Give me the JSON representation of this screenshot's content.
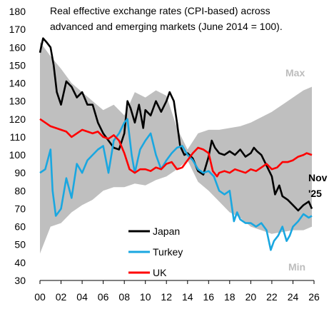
{
  "chart_data": {
    "type": "line",
    "title_lines": [
      "Real effective exchange rates (CPI-based) across",
      "advanced and emerging markets (June 2014 = 100)."
    ],
    "xlabel": "",
    "ylabel": "",
    "xlim": [
      2000,
      2026
    ],
    "ylim": [
      30,
      180
    ],
    "x_tick_labels": [
      "00",
      "02",
      "04",
      "06",
      "08",
      "10",
      "12",
      "14",
      "16",
      "18",
      "20",
      "22",
      "24",
      "26"
    ],
    "x_tick_values": [
      2000,
      2002,
      2004,
      2006,
      2008,
      2010,
      2012,
      2014,
      2016,
      2018,
      2020,
      2022,
      2024,
      2026
    ],
    "y_ticks": [
      30,
      40,
      50,
      60,
      70,
      80,
      90,
      100,
      110,
      120,
      130,
      140,
      150,
      160,
      170,
      180
    ],
    "grid": false,
    "band": {
      "labels": {
        "max": "Max",
        "min": "Min"
      },
      "color": "#bfbfbf",
      "x": [
        2000,
        2001,
        2002,
        2003,
        2004,
        2005,
        2006,
        2007,
        2008,
        2009,
        2010,
        2011,
        2012,
        2013,
        2014,
        2015,
        2016,
        2017,
        2018,
        2019,
        2020,
        2021,
        2022,
        2023,
        2024,
        2025,
        2025.8
      ],
      "max": [
        163,
        155,
        148,
        140,
        135,
        130,
        125,
        128,
        122,
        135,
        132,
        136,
        133,
        115,
        103,
        112,
        114,
        114,
        115,
        116,
        118,
        121,
        124,
        128,
        132,
        136,
        138
      ],
      "min": [
        45,
        60,
        62,
        68,
        72,
        75,
        80,
        82,
        82,
        84,
        83,
        86,
        88,
        92,
        97,
        85,
        80,
        74,
        68,
        65,
        60,
        58,
        56,
        57,
        58,
        58,
        60
      ]
    },
    "series": [
      {
        "name": "Japan",
        "color": "#000000",
        "x": [
          2000,
          2000.3,
          2000.6,
          2001,
          2001.3,
          2001.6,
          2002,
          2002.5,
          2003,
          2003.5,
          2004,
          2004.5,
          2005,
          2005.5,
          2006,
          2006.5,
          2007,
          2007.5,
          2008,
          2008.3,
          2008.6,
          2009,
          2009.4,
          2009.8,
          2010,
          2010.5,
          2011,
          2011.5,
          2012,
          2012.3,
          2012.7,
          2013,
          2013.3,
          2013.7,
          2014,
          2014.5,
          2015,
          2015.5,
          2016,
          2016.3,
          2016.6,
          2017,
          2017.5,
          2018,
          2018.5,
          2019,
          2019.5,
          2020,
          2020.3,
          2020.6,
          2021,
          2021.5,
          2022,
          2022.3,
          2022.7,
          2023,
          2023.5,
          2024,
          2024.5,
          2025,
          2025.5,
          2025.8
        ],
        "y": [
          157,
          165,
          163,
          160,
          150,
          135,
          128,
          141,
          138,
          132,
          135,
          128,
          128,
          118,
          112,
          108,
          104,
          103,
          112,
          130,
          126,
          118,
          128,
          115,
          125,
          122,
          130,
          124,
          130,
          135,
          130,
          118,
          105,
          100,
          101,
          98,
          91,
          89,
          99,
          108,
          104,
          101,
          100,
          102,
          100,
          103,
          99,
          101,
          104,
          102,
          100,
          94,
          88,
          78,
          83,
          77,
          75,
          72,
          69,
          72,
          74,
          70
        ]
      },
      {
        "name": "Turkey",
        "color": "#1aa7e0",
        "x": [
          2000,
          2000.5,
          2001,
          2001.2,
          2001.5,
          2002,
          2002.5,
          2003,
          2003.5,
          2004,
          2004.5,
          2005,
          2005.5,
          2006,
          2006.5,
          2007,
          2007.5,
          2008,
          2008.3,
          2008.7,
          2009,
          2009.5,
          2010,
          2010.5,
          2011,
          2011.5,
          2012,
          2012.5,
          2013,
          2013.5,
          2014,
          2014.5,
          2015,
          2015.5,
          2016,
          2016.5,
          2017,
          2017.5,
          2018,
          2018.4,
          2018.7,
          2019,
          2019.5,
          2020,
          2020.5,
          2021,
          2021.5,
          2021.9,
          2022.2,
          2022.6,
          2023,
          2023.4,
          2023.7,
          2024,
          2024.5,
          2025,
          2025.5,
          2025.8
        ],
        "y": [
          90,
          92,
          103,
          80,
          66,
          70,
          87,
          76,
          95,
          90,
          97,
          100,
          103,
          105,
          90,
          108,
          112,
          118,
          120,
          100,
          90,
          103,
          108,
          112,
          100,
          92,
          97,
          101,
          104,
          105,
          100,
          97,
          92,
          90,
          91,
          88,
          80,
          78,
          80,
          63,
          68,
          64,
          62,
          62,
          60,
          62,
          58,
          47,
          52,
          55,
          60,
          52,
          55,
          60,
          63,
          67,
          65,
          66
        ]
      },
      {
        "name": "UK",
        "color": "#ff0000",
        "x": [
          2000,
          2000.5,
          2001,
          2001.5,
          2002,
          2002.5,
          2003,
          2003.5,
          2004,
          2004.5,
          2005,
          2005.5,
          2006,
          2006.5,
          2007,
          2007.5,
          2008,
          2008.5,
          2009,
          2009.5,
          2010,
          2010.5,
          2011,
          2011.5,
          2012,
          2012.5,
          2013,
          2013.5,
          2014,
          2014.5,
          2015,
          2015.5,
          2016,
          2016.4,
          2016.8,
          2017,
          2017.5,
          2018,
          2018.5,
          2019,
          2019.5,
          2020,
          2020.5,
          2021,
          2021.5,
          2022,
          2022.5,
          2023,
          2023.5,
          2024,
          2024.5,
          2025,
          2025.3,
          2025.8
        ],
        "y": [
          120,
          118,
          116,
          115,
          114,
          113,
          110,
          112,
          114,
          113,
          112,
          113,
          110,
          109,
          111,
          108,
          101,
          92,
          90,
          92,
          92,
          91,
          93,
          92,
          95,
          96,
          92,
          93,
          97,
          101,
          104,
          103,
          101,
          91,
          88,
          90,
          91,
          90,
          92,
          91,
          90,
          92,
          91,
          93,
          95,
          92,
          93,
          96,
          96,
          97,
          99,
          100,
          101,
          100
        ]
      }
    ],
    "annotation": [
      "Nov",
      "'25"
    ]
  }
}
